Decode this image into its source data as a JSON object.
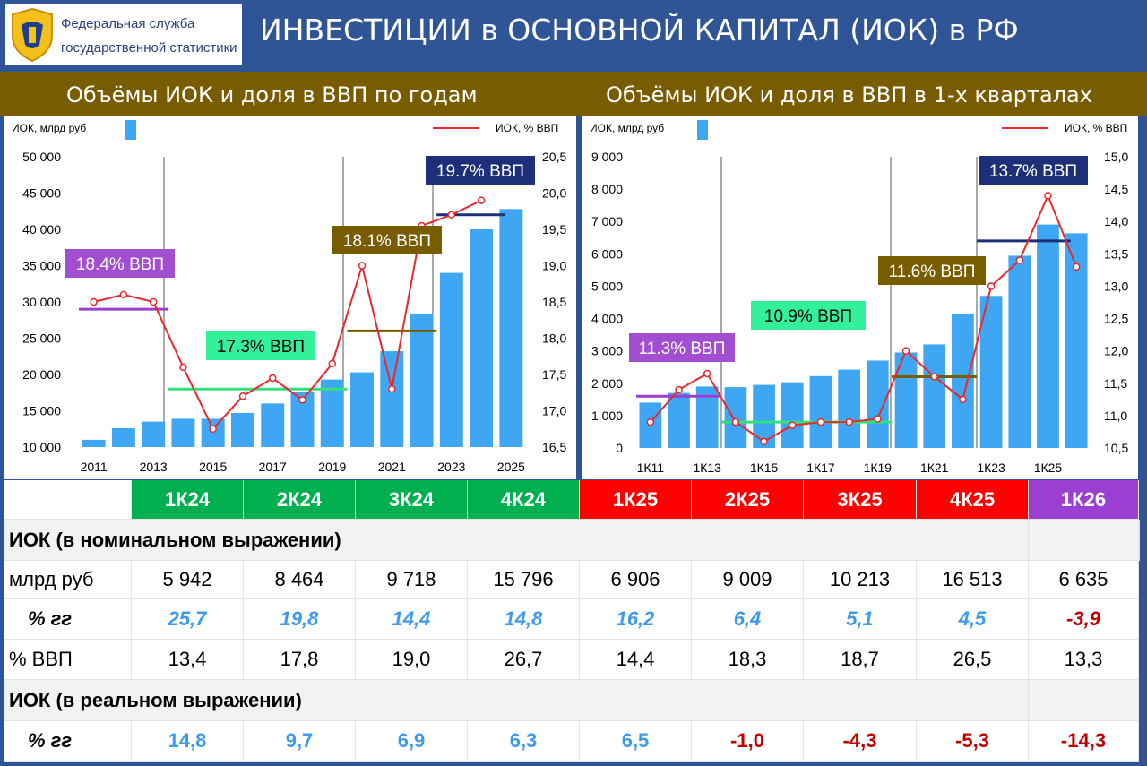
{
  "header": {
    "logo_line1": "Федеральная служба",
    "logo_line2": "государственной статистики",
    "title": "ИНВЕСТИЦИИ в ОСНОВНОЙ КАПИТАЛ (ИОК) в РФ"
  },
  "subtitles": {
    "left": "Объёмы ИОК и доля в ВВП по годам",
    "right": "Объёмы ИОК и доля в ВВП в 1-х кварталах"
  },
  "colors": {
    "header_bg": "#2f5597",
    "subbar_bg": "#7a5c00",
    "bar": "#3ea6f3",
    "line": "#e8282d",
    "green_header": "#00b050",
    "red_header": "#ff0000",
    "purple_header": "#9b3fd0"
  },
  "chart_data": [
    {
      "type": "bar",
      "ylabel": "ИОК, млрд руб",
      "y2label": "ИОК, % ВВП",
      "x": [
        2011,
        2012,
        2013,
        2014,
        2015,
        2016,
        2017,
        2018,
        2019,
        2020,
        2021,
        2022,
        2023,
        2024,
        2025
      ],
      "x_tick_labels": [
        "2011",
        "2013",
        "2015",
        "2017",
        "2019",
        "2021",
        "2023",
        "2025"
      ],
      "values": [
        11000,
        12600,
        13500,
        13900,
        13900,
        14700,
        16000,
        17600,
        19300,
        20300,
        23200,
        28400,
        34000,
        40000,
        42800
      ],
      "line_values": [
        18.5,
        18.6,
        18.5,
        17.6,
        16.75,
        17.2,
        17.45,
        17.15,
        17.65,
        19.0,
        17.3,
        19.55,
        19.7,
        19.9,
        null
      ],
      "ylim": [
        10000,
        50000
      ],
      "yticks": [
        "10 000",
        "15 000",
        "20 000",
        "25 000",
        "30 000",
        "35 000",
        "40 000",
        "45 000",
        "50 000"
      ],
      "y2lim": [
        16.5,
        20.5
      ],
      "y2ticks": [
        "16,5",
        "17,0",
        "17,5",
        "18,0",
        "18,5",
        "19,0",
        "19,5",
        "20,0",
        "20,5"
      ],
      "annotations": [
        "18.4% ВВП",
        "17.3% ВВП",
        "18.1% ВВП",
        "19.7% ВВП"
      ]
    },
    {
      "type": "bar",
      "ylabel": "ИОК, млрд руб",
      "y2label": "ИОК, % ВВП",
      "x": [
        "1К11",
        "1К12",
        "1К13",
        "1К14",
        "1К15",
        "1К16",
        "1К17",
        "1К18",
        "1К19",
        "1К20",
        "1К21",
        "1К22",
        "1К23",
        "1К24",
        "1К25",
        "1К26"
      ],
      "x_tick_labels": [
        "1К11",
        "1К13",
        "1К15",
        "1К17",
        "1К19",
        "1К21",
        "1К23",
        "1К25"
      ],
      "values": [
        1400,
        1700,
        1900,
        1880,
        1950,
        2030,
        2220,
        2420,
        2700,
        2950,
        3200,
        4150,
        4700,
        5942,
        6906,
        6635
      ],
      "line_values": [
        10.9,
        11.4,
        11.65,
        10.9,
        10.6,
        10.85,
        10.9,
        10.9,
        10.95,
        12.0,
        11.6,
        11.25,
        13.0,
        13.4,
        14.4,
        13.3
      ],
      "ylim": [
        0,
        9000
      ],
      "yticks": [
        "0",
        "1 000",
        "2 000",
        "3 000",
        "4 000",
        "5 000",
        "6 000",
        "7 000",
        "8 000",
        "9 000"
      ],
      "y2lim": [
        10.5,
        15.0
      ],
      "y2ticks": [
        "10,5",
        "11,0",
        "11,5",
        "12,0",
        "12,5",
        "13,0",
        "13,5",
        "14,0",
        "14,5",
        "15,0"
      ],
      "annotations": [
        "11.3% ВВП",
        "10.9% ВВП",
        "11.6% ВВП",
        "13.7% ВВП"
      ]
    }
  ],
  "table": {
    "columns": [
      "1К24",
      "2К24",
      "3К24",
      "4К24",
      "1К25",
      "2К25",
      "3К25",
      "4К25",
      "1К26"
    ],
    "section1": "ИОК (в номинальном выражении)",
    "section2": "ИОК (в реальном выражении)",
    "row_mlrd_label": "млрд руб",
    "row_mlrd": [
      "5 942",
      "8 464",
      "9 718",
      "15 796",
      "6 906",
      "9 009",
      "10 213",
      "16 513",
      "6 635"
    ],
    "row_yoy_label": "% гг",
    "row_yoy": [
      "25,7",
      "19,8",
      "14,4",
      "14,8",
      "16,2",
      "6,4",
      "5,1",
      "4,5",
      "-3,9"
    ],
    "row_gdp_label": "% ВВП",
    "row_gdp": [
      "13,4",
      "17,8",
      "19,0",
      "26,7",
      "14,4",
      "18,3",
      "18,7",
      "26,5",
      "13,3"
    ],
    "row_real_label": "% гг",
    "row_real": [
      "14,8",
      "9,7",
      "6,9",
      "6,3",
      "6,5",
      "-1,0",
      "-4,3",
      "-5,3",
      "-14,3"
    ]
  }
}
